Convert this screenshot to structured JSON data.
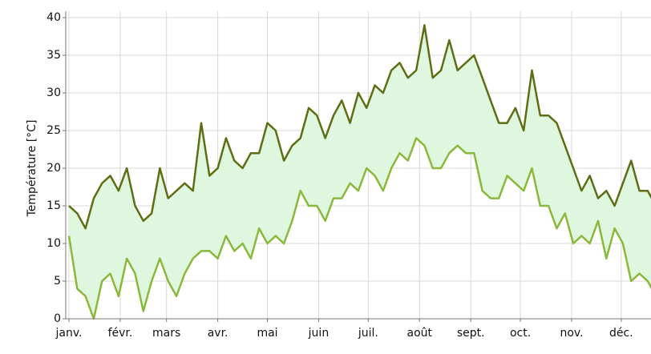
{
  "chart_data": {
    "type": "range-line",
    "ylabel": "Température [°C]",
    "xlim": [
      0,
      352
    ],
    "ylim": [
      0,
      40
    ],
    "yticks": [
      0,
      5,
      10,
      15,
      20,
      25,
      30,
      35,
      40
    ],
    "xticks": [
      {
        "value": 0,
        "label": "janv."
      },
      {
        "value": 31,
        "label": "févr."
      },
      {
        "value": 59,
        "label": "mars"
      },
      {
        "value": 90,
        "label": "avr."
      },
      {
        "value": 120,
        "label": "mai"
      },
      {
        "value": 151,
        "label": "juin"
      },
      {
        "value": 181,
        "label": "juil."
      },
      {
        "value": 212,
        "label": "août"
      },
      {
        "value": 243,
        "label": "sept."
      },
      {
        "value": 273,
        "label": "oct."
      },
      {
        "value": 304,
        "label": "nov."
      },
      {
        "value": 334,
        "label": "déc."
      }
    ],
    "grid": true,
    "fill_color": "#dff7df",
    "x": [
      0,
      5,
      10,
      15,
      20,
      25,
      30,
      35,
      40,
      45,
      50,
      55,
      60,
      65,
      70,
      75,
      80,
      85,
      90,
      95,
      100,
      105,
      110,
      115,
      120,
      125,
      130,
      135,
      140,
      145,
      150,
      155,
      160,
      165,
      170,
      175,
      180,
      185,
      190,
      195,
      200,
      205,
      210,
      215,
      220,
      225,
      230,
      235,
      240,
      245,
      250,
      255,
      260,
      265,
      270,
      275,
      280,
      285,
      290,
      295,
      300,
      305,
      310,
      315,
      320,
      325,
      330,
      335,
      340,
      345,
      350,
      355,
      360
    ],
    "series": [
      {
        "color": "#5e6e14",
        "values": [
          15,
          14,
          12,
          16,
          18,
          19,
          17,
          20,
          15,
          13,
          14,
          20,
          16,
          17,
          18,
          17,
          26,
          19,
          20,
          24,
          21,
          20,
          22,
          22,
          26,
          25,
          21,
          23,
          24,
          28,
          27,
          24,
          27,
          29,
          26,
          30,
          28,
          31,
          30,
          33,
          34,
          32,
          33,
          39,
          32,
          33,
          37,
          33,
          34,
          35,
          32,
          29,
          26,
          26,
          28,
          25,
          33,
          27,
          27,
          26,
          23,
          20,
          17,
          19,
          16,
          17,
          15,
          18,
          21,
          17,
          17,
          15,
          16
        ]
      },
      {
        "color": "#8ab83a",
        "values": [
          11,
          4,
          3,
          0,
          5,
          6,
          3,
          8,
          6,
          1,
          5,
          8,
          5,
          3,
          6,
          8,
          9,
          9,
          8,
          11,
          9,
          10,
          8,
          12,
          10,
          11,
          10,
          13,
          17,
          15,
          15,
          13,
          16,
          16,
          18,
          17,
          20,
          19,
          17,
          20,
          22,
          21,
          24,
          23,
          20,
          20,
          22,
          23,
          22,
          22,
          17,
          16,
          16,
          19,
          18,
          17,
          20,
          15,
          15,
          12,
          14,
          10,
          11,
          10,
          13,
          8,
          12,
          10,
          5,
          6,
          5,
          3,
          10
        ]
      }
    ]
  }
}
